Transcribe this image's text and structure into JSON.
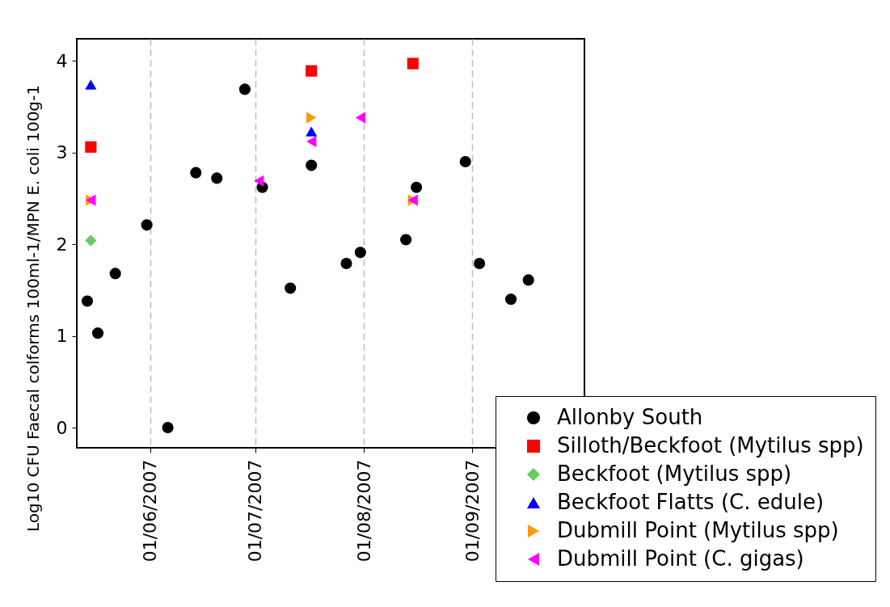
{
  "chart_data": {
    "type": "scatter",
    "ylabel": "Log10 CFU Faecal colforms 100ml-1/MPN E. coli 100g-1",
    "xlim": [
      "2007-05-11",
      "2007-10-03"
    ],
    "xticks": [
      {
        "value": "2007-06-01",
        "label": "01/06/2007"
      },
      {
        "value": "2007-07-01",
        "label": "01/07/2007"
      },
      {
        "value": "2007-08-01",
        "label": "01/08/2007"
      },
      {
        "value": "2007-09-01",
        "label": "01/09/2007"
      }
    ],
    "ylim": [
      -0.22,
      4.24
    ],
    "yticks": [
      0,
      1,
      2,
      3,
      4
    ],
    "grid": "x",
    "legend": "bottom right",
    "series": [
      {
        "name": "Allonby South",
        "color": "#000000",
        "marker": "circle",
        "x": [
          "2007-05-14",
          "2007-05-17",
          "2007-05-22",
          "2007-05-31",
          "2007-06-06",
          "2007-06-14",
          "2007-06-20",
          "2007-06-28",
          "2007-07-03",
          "2007-07-11",
          "2007-07-17",
          "2007-07-27",
          "2007-07-31",
          "2007-08-13",
          "2007-08-16",
          "2007-08-30",
          "2007-09-03",
          "2007-09-12",
          "2007-09-17"
        ],
        "values": [
          1.38,
          1.03,
          1.68,
          2.21,
          0,
          2.78,
          2.72,
          3.69,
          2.62,
          1.52,
          2.86,
          1.79,
          1.91,
          2.05,
          2.62,
          2.9,
          1.79,
          1.4,
          1.61
        ]
      },
      {
        "name": "Silloth/Beckfoot (Mytilus spp)",
        "color": "#ff0000",
        "marker": "square",
        "x": [
          "2007-05-15",
          "2007-07-17",
          "2007-08-15"
        ],
        "values": [
          3.06,
          3.89,
          3.97
        ]
      },
      {
        "name": "Beckfoot (Mytilus spp)",
        "color": "#66cc66",
        "marker": "diamond",
        "x": [
          "2007-05-15"
        ],
        "values": [
          2.04
        ]
      },
      {
        "name": "Beckfoot Flatts (C. edule)",
        "color": "#0000ff",
        "marker": "triangle",
        "x": [
          "2007-05-15",
          "2007-07-17"
        ],
        "values": [
          3.74,
          3.23
        ]
      },
      {
        "name": "Dubmill Point (Mytilus spp)",
        "color": "#ff9900",
        "marker": "triangle-right",
        "x": [
          "2007-05-15",
          "2007-07-17",
          "2007-08-15"
        ],
        "values": [
          2.48,
          3.38,
          2.48
        ]
      },
      {
        "name": "Dubmill Point (C. gigas)",
        "color": "#ff00ff",
        "marker": "triangle-left",
        "x": [
          "2007-05-15",
          "2007-07-02",
          "2007-07-17",
          "2007-07-31",
          "2007-08-15"
        ],
        "values": [
          2.48,
          2.69,
          3.12,
          3.38,
          2.48
        ]
      }
    ]
  }
}
